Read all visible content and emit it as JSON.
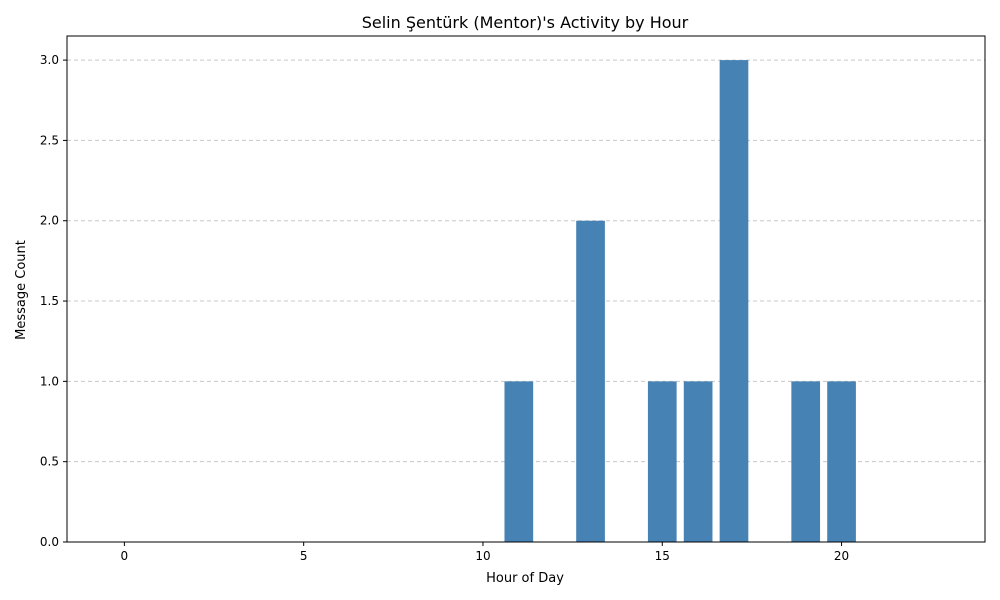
{
  "chart_data": {
    "type": "bar",
    "title": "Selin Şentürk (Mentor)'s Activity by Hour",
    "xlabel": "Hour of Day",
    "ylabel": "Message Count",
    "x": [
      11,
      13,
      15,
      16,
      17,
      19,
      20
    ],
    "values": [
      1,
      2,
      1,
      1,
      3,
      1,
      1
    ],
    "xlim": [
      -1.6,
      24.0
    ],
    "ylim": [
      0,
      3.15
    ],
    "xticks": [
      "0",
      "5",
      "10",
      "15",
      "20"
    ],
    "yticks": [
      "0.0",
      "0.5",
      "1.0",
      "1.5",
      "2.0",
      "2.5",
      "3.0"
    ],
    "grid": "y, dashed",
    "bar_color": "#4682b4",
    "grid_color": "#c8c8c8"
  }
}
